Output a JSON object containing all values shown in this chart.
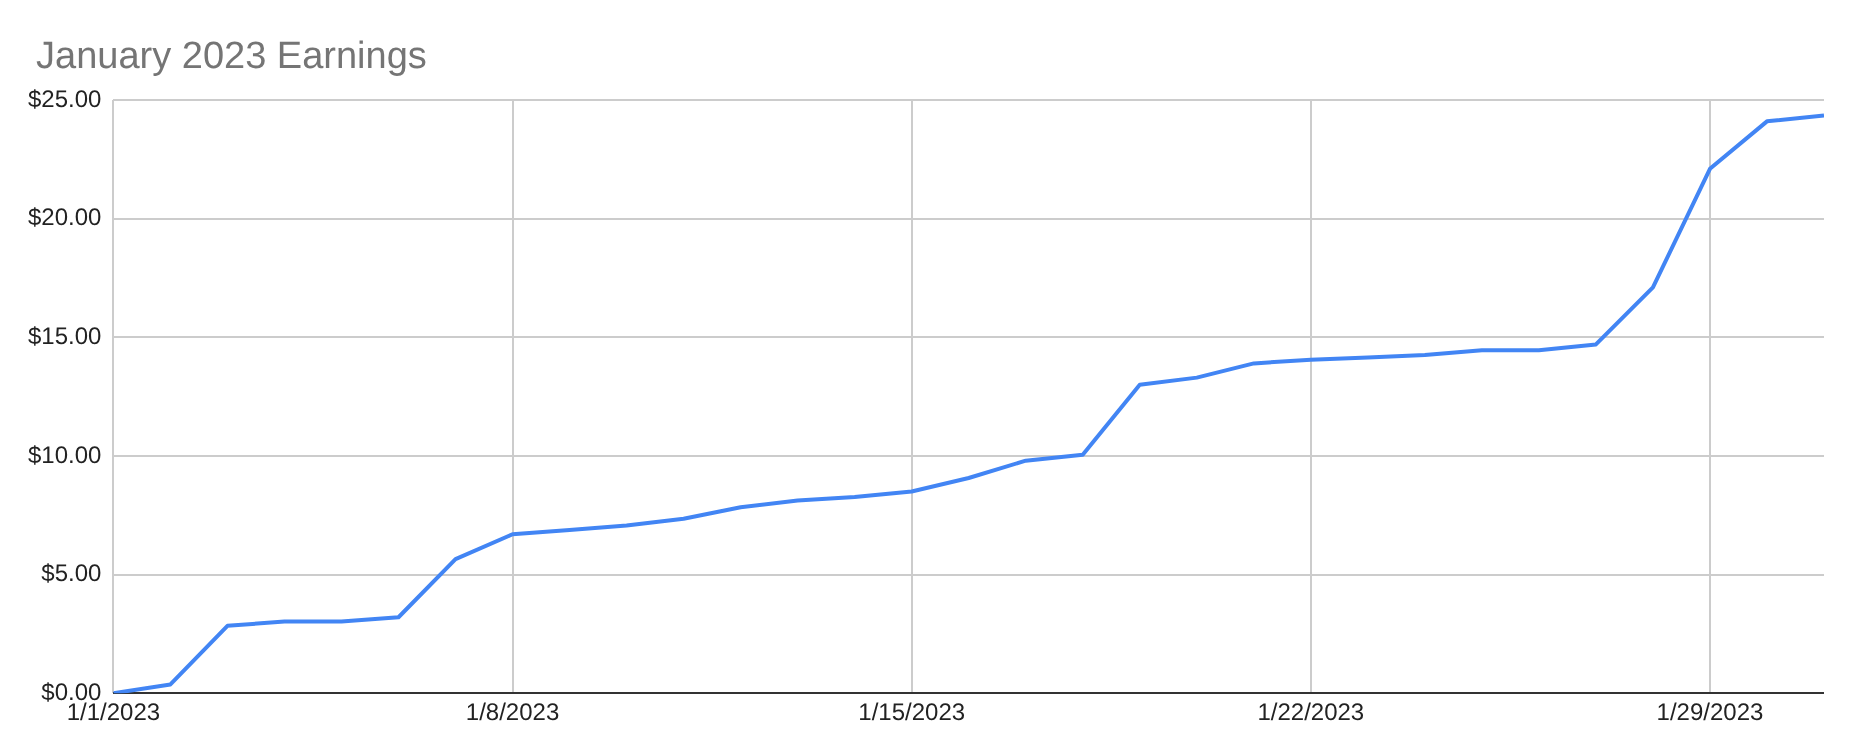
{
  "chart_data": {
    "type": "line",
    "title": "January 2023 Earnings",
    "x": [
      "2023-01-01",
      "2023-01-02",
      "2023-01-03",
      "2023-01-04",
      "2023-01-05",
      "2023-01-06",
      "2023-01-07",
      "2023-01-08",
      "2023-01-09",
      "2023-01-10",
      "2023-01-11",
      "2023-01-12",
      "2023-01-13",
      "2023-01-14",
      "2023-01-15",
      "2023-01-16",
      "2023-01-17",
      "2023-01-18",
      "2023-01-19",
      "2023-01-20",
      "2023-01-21",
      "2023-01-22",
      "2023-01-23",
      "2023-01-24",
      "2023-01-25",
      "2023-01-26",
      "2023-01-27",
      "2023-01-28",
      "2023-01-29",
      "2023-01-30",
      "2023-01-31"
    ],
    "series": [
      {
        "color": "#4285f4",
        "values": [
          0,
          0.37,
          2.84,
          3.02,
          3.02,
          3.2,
          5.65,
          6.7,
          6.88,
          7.07,
          7.35,
          7.84,
          8.12,
          8.27,
          8.5,
          9.07,
          9.8,
          10.05,
          13.0,
          13.3,
          13.9,
          14.05,
          14.15,
          14.25,
          14.45,
          14.45,
          14.7,
          17.1,
          22.1,
          24.1,
          24.35
        ]
      }
    ],
    "xlim": [
      "2023-01-01",
      "2023-01-31"
    ],
    "xticks": [
      {
        "value": "2023-01-01",
        "label": "1/1/2023"
      },
      {
        "value": "2023-01-08",
        "label": "1/8/2023"
      },
      {
        "value": "2023-01-15",
        "label": "1/15/2023"
      },
      {
        "value": "2023-01-22",
        "label": "1/22/2023"
      },
      {
        "value": "2023-01-29",
        "label": "1/29/2023"
      }
    ],
    "ylim": [
      0,
      25
    ],
    "yticks": [
      {
        "value": 0,
        "label": "$0.00"
      },
      {
        "value": 5,
        "label": "$5.00"
      },
      {
        "value": 10,
        "label": "$10.00"
      },
      {
        "value": 15,
        "label": "$15.00"
      },
      {
        "value": 20,
        "label": "$20.00"
      },
      {
        "value": 25,
        "label": "$25.00"
      }
    ],
    "grid": true,
    "legend": false,
    "marker": "none",
    "line_style": "solid"
  }
}
